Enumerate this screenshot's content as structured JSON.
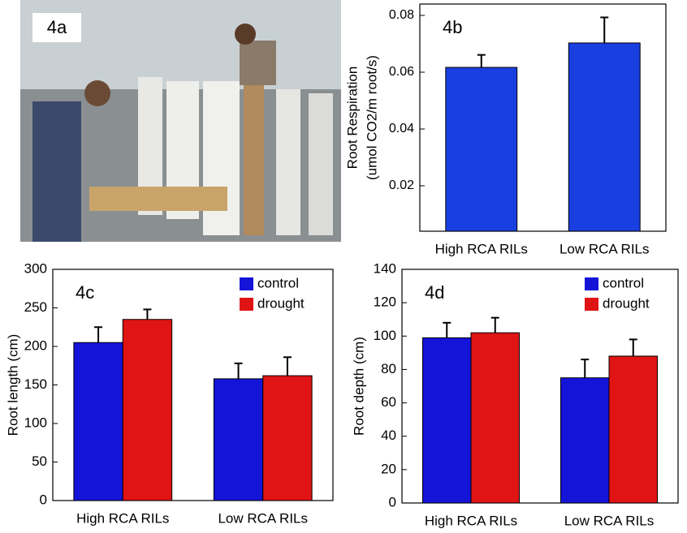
{
  "photo": {
    "label": "4a"
  },
  "chart_data": [
    {
      "type": "bar",
      "panel_label": "4b",
      "ylabel": [
        "Root Respiration",
        "(umol CO2/m root/s)"
      ],
      "categories": [
        "High RCA RILs",
        "Low RCA RILs"
      ],
      "values": [
        0.0617,
        0.0703
      ],
      "errors": [
        0.0044,
        0.009
      ],
      "color": "#1a3fe0",
      "ylim": [
        0.004,
        0.084
      ],
      "yticks": [
        0.02,
        0.04,
        0.06,
        0.08
      ]
    },
    {
      "type": "bar",
      "panel_label": "4c",
      "ylabel": "Root length (cm)",
      "categories": [
        "High RCA RILs",
        "Low RCA RILs"
      ],
      "series": [
        {
          "name": "control",
          "color": "#1414d8",
          "values": [
            205,
            158
          ],
          "errors": [
            20,
            20
          ]
        },
        {
          "name": "drought",
          "color": "#e01414",
          "values": [
            235,
            162
          ],
          "errors": [
            13,
            24
          ]
        }
      ],
      "ylim": [
        0,
        300
      ],
      "yticks": [
        0,
        50,
        100,
        150,
        200,
        250,
        300
      ],
      "legend": "upper right"
    },
    {
      "type": "bar",
      "panel_label": "4d",
      "ylabel": "Root depth (cm)",
      "categories": [
        "High RCA RILs",
        "Low RCA RILs"
      ],
      "series": [
        {
          "name": "control",
          "color": "#1414d8",
          "values": [
            99,
            75
          ],
          "errors": [
            9,
            11
          ]
        },
        {
          "name": "drought",
          "color": "#e01414",
          "values": [
            102,
            88
          ],
          "errors": [
            9,
            10
          ]
        }
      ],
      "ylim": [
        0,
        140
      ],
      "yticks": [
        0,
        20,
        40,
        60,
        80,
        100,
        120,
        140
      ],
      "legend": "upper right"
    }
  ]
}
